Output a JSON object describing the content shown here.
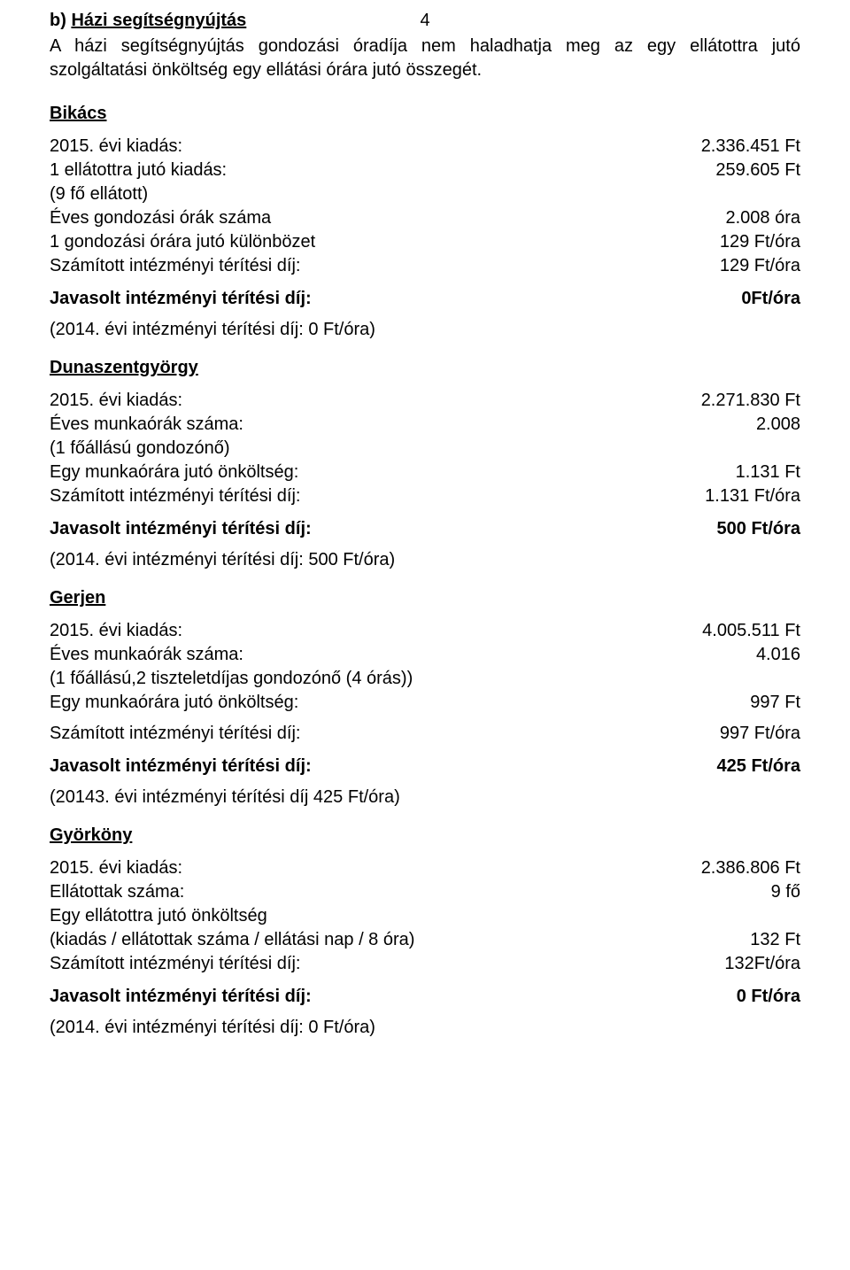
{
  "page_number": "4",
  "heading": {
    "prefix": "b) ",
    "title": "Házi segítségnyújtás"
  },
  "intro": "A házi segítségnyújtás gondozási óradíja nem haladhatja meg az egy ellátottra jutó szolgáltatási önköltség egy ellátási órára jutó összegét.",
  "sections": [
    {
      "city": "Bikács",
      "rows": [
        {
          "left": "2015. évi kiadás:",
          "right": "2.336.451 Ft"
        },
        {
          "left": "1 ellátottra jutó kiadás:",
          "right": "259.605 Ft"
        },
        {
          "left": "(9 fő ellátott)",
          "right": ""
        },
        {
          "left": "Éves gondozási órák száma",
          "right": "2.008 óra"
        },
        {
          "left": "1 gondozási órára jutó különbözet",
          "right": "129 Ft/óra"
        },
        {
          "left": "Számított intézményi térítési díj:",
          "right": "129 Ft/óra"
        }
      ],
      "proposed": {
        "left": "Javasolt intézményi térítési díj:",
        "right": "0Ft/óra"
      },
      "prev": "(2014. évi intézményi térítési díj: 0 Ft/óra)"
    },
    {
      "city": "Dunaszentgyörgy",
      "rows": [
        {
          "left": "2015. évi kiadás:",
          "right": "2.271.830 Ft"
        },
        {
          "left": "Éves munkaórák száma:",
          "right": "2.008"
        },
        {
          "left": "(1 főállású gondozónő)",
          "right": ""
        },
        {
          "left": "Egy munkaórára jutó önköltség:",
          "right": "1.131 Ft"
        },
        {
          "left": "Számított intézményi térítési díj:",
          "right": "1.131 Ft/óra"
        }
      ],
      "proposed": {
        "left": "Javasolt intézményi térítési díj:",
        "right": "500 Ft/óra"
      },
      "prev": "(2014. évi intézményi térítési díj: 500 Ft/óra)"
    },
    {
      "city": "Gerjen",
      "rows": [
        {
          "left": "2015. évi kiadás:",
          "right": "4.005.511 Ft"
        },
        {
          "left": "Éves munkaórák száma:",
          "right": "4.016"
        },
        {
          "left": "(1 főállású,2 tiszteletdíjas gondozónő (4 órás))",
          "right": ""
        },
        {
          "left": "Egy munkaórára jutó önköltség:",
          "right": "997 Ft"
        }
      ],
      "extra_row": {
        "left": "Számított intézményi térítési díj:",
        "right": "997 Ft/óra"
      },
      "proposed": {
        "left": "Javasolt intézményi térítési díj:",
        "right": "425 Ft/óra"
      },
      "prev": "(20143. évi intézményi térítési díj 425 Ft/óra)"
    },
    {
      "city": "Györköny",
      "rows": [
        {
          "left": "2015. évi kiadás:",
          "right": "2.386.806 Ft"
        },
        {
          "left": "Ellátottak száma:",
          "right": "9 fő"
        },
        {
          "left": "Egy ellátottra jutó önköltség",
          "right": ""
        },
        {
          "left": "(kiadás / ellátottak száma / ellátási nap / 8 óra)",
          "right": "132 Ft"
        },
        {
          "left": "Számított intézményi térítési díj:",
          "right": "132Ft/óra"
        }
      ],
      "proposed": {
        "left": "Javasolt intézményi térítési díj:",
        "right": "0 Ft/óra"
      },
      "prev": "(2014. évi intézményi térítési díj: 0 Ft/óra)"
    }
  ]
}
